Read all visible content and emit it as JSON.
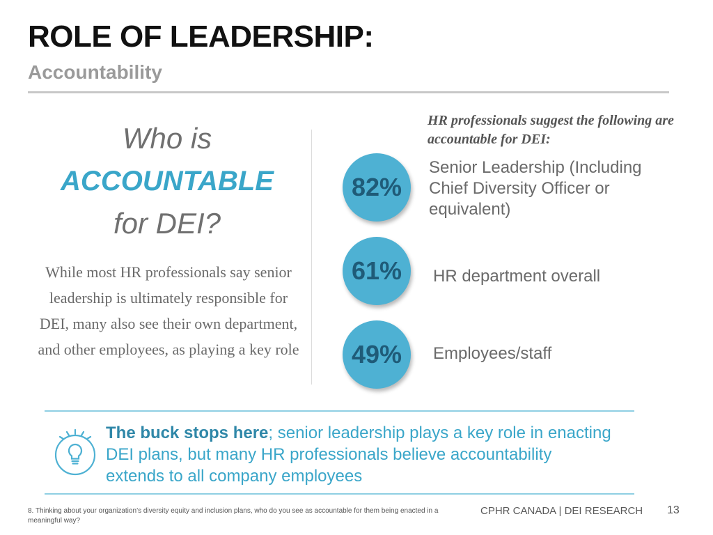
{
  "header": {
    "title": "ROLE OF LEADERSHIP:",
    "subtitle": "Accountability"
  },
  "question": {
    "line1": "Who is",
    "line2": "ACCOUNTABLE",
    "line3": "for DEI?"
  },
  "left_body": "While most HR professionals say senior leadership is ultimately responsible for DEI, many also see their own department, and other employees, as playing a key role",
  "intro": "HR professionals suggest the following are accountable for DEI:",
  "items": [
    {
      "percent": "82%",
      "label": "Senior Leadership (Including Chief Diversity Officer or equivalent)"
    },
    {
      "percent": "61%",
      "label": "HR department overall"
    },
    {
      "percent": "49%",
      "label": "Employees/staff"
    }
  ],
  "callout": {
    "bold": "The buck stops here",
    "rest": "; senior leadership plays a key role in enacting DEI plans, but many HR professionals believe accountability extends to all company employees"
  },
  "icons": {
    "callout_icon": "lightbulb-icon"
  },
  "colors": {
    "accent": "#3aa6c9",
    "circle": "#4eb1d3",
    "circle_text": "#1f5b78"
  },
  "footer": {
    "footnote": "8. Thinking about your organization’s diversity equity and inclusion plans, who do you see as accountable for them being enacted in a meaningful way?",
    "brand": "CPHR CANADA | DEI RESEARCH",
    "page_number": "13"
  }
}
